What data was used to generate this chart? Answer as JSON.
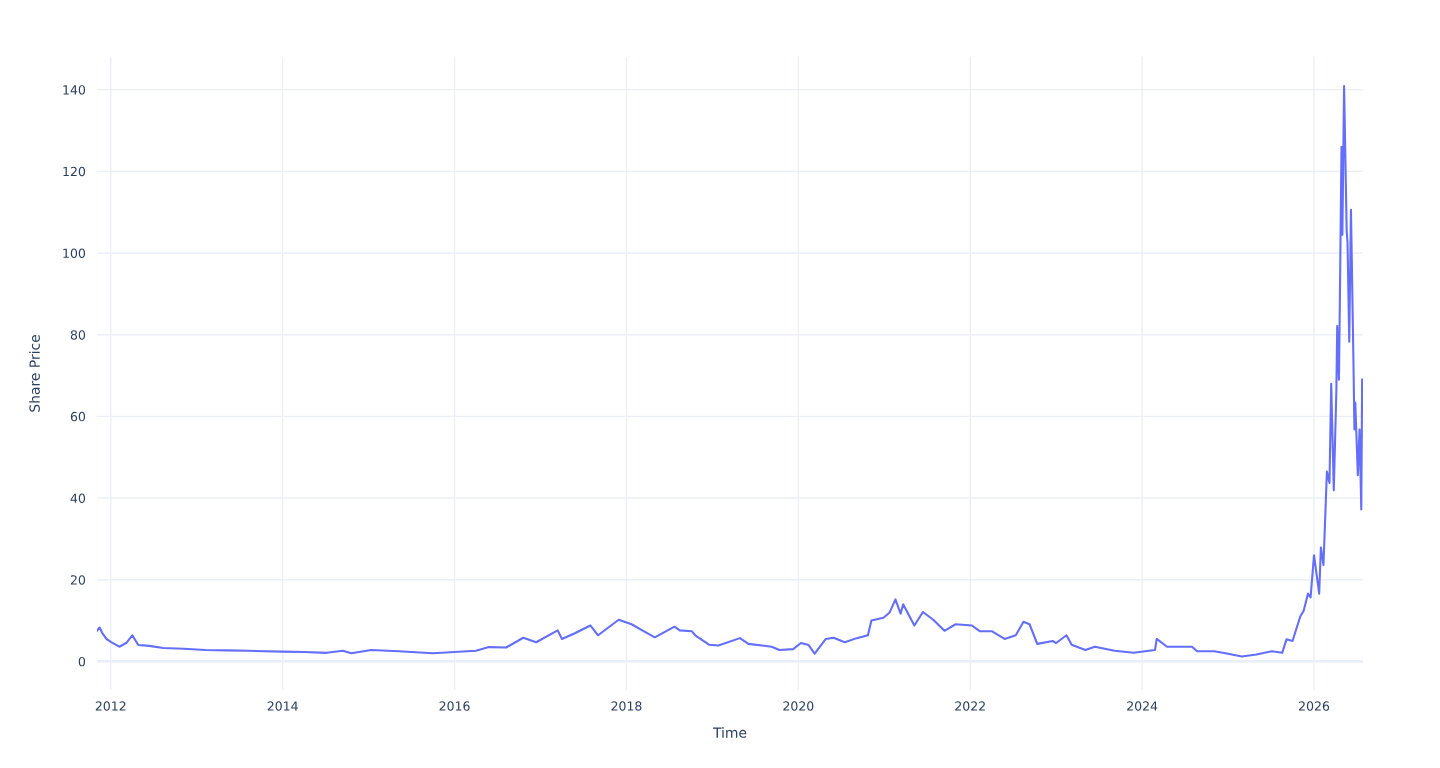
{
  "chart_data": {
    "type": "line",
    "xlabel": "Time",
    "ylabel": "Share Price",
    "xlim": [
      2011.84,
      2026.57
    ],
    "xticks": [
      2012,
      2014,
      2016,
      2018,
      2020,
      2022,
      2024,
      2026
    ],
    "ylim": [
      -7,
      148
    ],
    "yticks": [
      0,
      20,
      40,
      60,
      80,
      100,
      120,
      140
    ],
    "grid": true,
    "marker": "none",
    "line_style": "solid",
    "series": [
      {
        "color": "#636efa",
        "x": [
          2011.84,
          2011.87,
          2011.9,
          2011.95,
          2012.0,
          2012.1,
          2012.18,
          2012.25,
          2012.32,
          2012.45,
          2012.61,
          2012.85,
          2013.1,
          2013.35,
          2013.6,
          2014.0,
          2014.25,
          2014.51,
          2014.7,
          2014.8,
          2015.03,
          2015.35,
          2015.75,
          2016.0,
          2016.25,
          2016.4,
          2016.6,
          2016.8,
          2016.95,
          2017.2,
          2017.25,
          2017.4,
          2017.58,
          2017.67,
          2017.91,
          2018.06,
          2018.2,
          2018.33,
          2018.56,
          2018.62,
          2018.76,
          2018.8,
          2018.96,
          2019.07,
          2019.32,
          2019.42,
          2019.69,
          2019.78,
          2019.94,
          2020.03,
          2020.12,
          2020.19,
          2020.32,
          2020.41,
          2020.54,
          2020.68,
          2020.81,
          2020.85,
          2020.99,
          2021.06,
          2021.13,
          2021.19,
          2021.22,
          2021.35,
          2021.45,
          2021.57,
          2021.7,
          2021.83,
          2022.02,
          2022.11,
          2022.25,
          2022.4,
          2022.53,
          2022.62,
          2022.69,
          2022.78,
          2022.96,
          2023.0,
          2023.12,
          2023.18,
          2023.34,
          2023.45,
          2023.68,
          2023.9,
          2024.15,
          2024.17,
          2024.29,
          2024.58,
          2024.64,
          2024.84,
          2024.97,
          2025.16,
          2025.33,
          2025.51,
          2025.63,
          2025.68,
          2025.75,
          2025.84,
          2025.88,
          2025.93,
          2025.96,
          2026.0,
          2026.06,
          2026.08,
          2026.11,
          2026.15,
          2026.18,
          2026.2,
          2026.23,
          2026.26,
          2026.27,
          2026.29,
          2026.3,
          2026.32,
          2026.33,
          2026.35,
          2026.38,
          2026.39,
          2026.41,
          2026.43,
          2026.45,
          2026.46,
          2026.47,
          2026.48,
          2026.51,
          2026.53,
          2026.55,
          2026.56
        ],
        "values": [
          7.5,
          8.3,
          7.0,
          5.5,
          4.8,
          3.6,
          4.5,
          6.4,
          4.0,
          3.8,
          3.3,
          3.1,
          2.8,
          2.7,
          2.6,
          2.4,
          2.3,
          2.1,
          2.6,
          2.0,
          2.8,
          2.5,
          2.0,
          2.3,
          2.6,
          3.5,
          3.4,
          5.8,
          4.7,
          7.6,
          5.5,
          6.9,
          8.8,
          6.4,
          10.2,
          9.1,
          7.4,
          5.9,
          8.5,
          7.6,
          7.4,
          6.4,
          4.1,
          3.9,
          5.7,
          4.3,
          3.6,
          2.8,
          3.0,
          4.5,
          4.0,
          1.9,
          5.5,
          5.8,
          4.7,
          5.7,
          6.4,
          10.0,
          10.7,
          11.9,
          15.2,
          11.7,
          14.0,
          8.8,
          12.1,
          10.2,
          7.5,
          9.1,
          8.8,
          7.4,
          7.4,
          5.5,
          6.4,
          9.7,
          9.1,
          4.3,
          5.0,
          4.5,
          6.4,
          4.1,
          2.8,
          3.6,
          2.6,
          2.1,
          2.8,
          5.5,
          3.6,
          3.6,
          2.5,
          2.5,
          2.0,
          1.2,
          1.7,
          2.5,
          2.1,
          5.4,
          5.0,
          11.0,
          12.4,
          16.6,
          15.7,
          26.0,
          16.6,
          27.9,
          23.6,
          46.5,
          43.7,
          68.0,
          41.9,
          66.2,
          82.1,
          69.0,
          86.7,
          126.0,
          104.5,
          140.9,
          105.4,
          102.6,
          78.3,
          110.6,
          84.9,
          71.8,
          56.8,
          63.4,
          45.6,
          56.8,
          37.2,
          69.0
        ]
      }
    ]
  }
}
